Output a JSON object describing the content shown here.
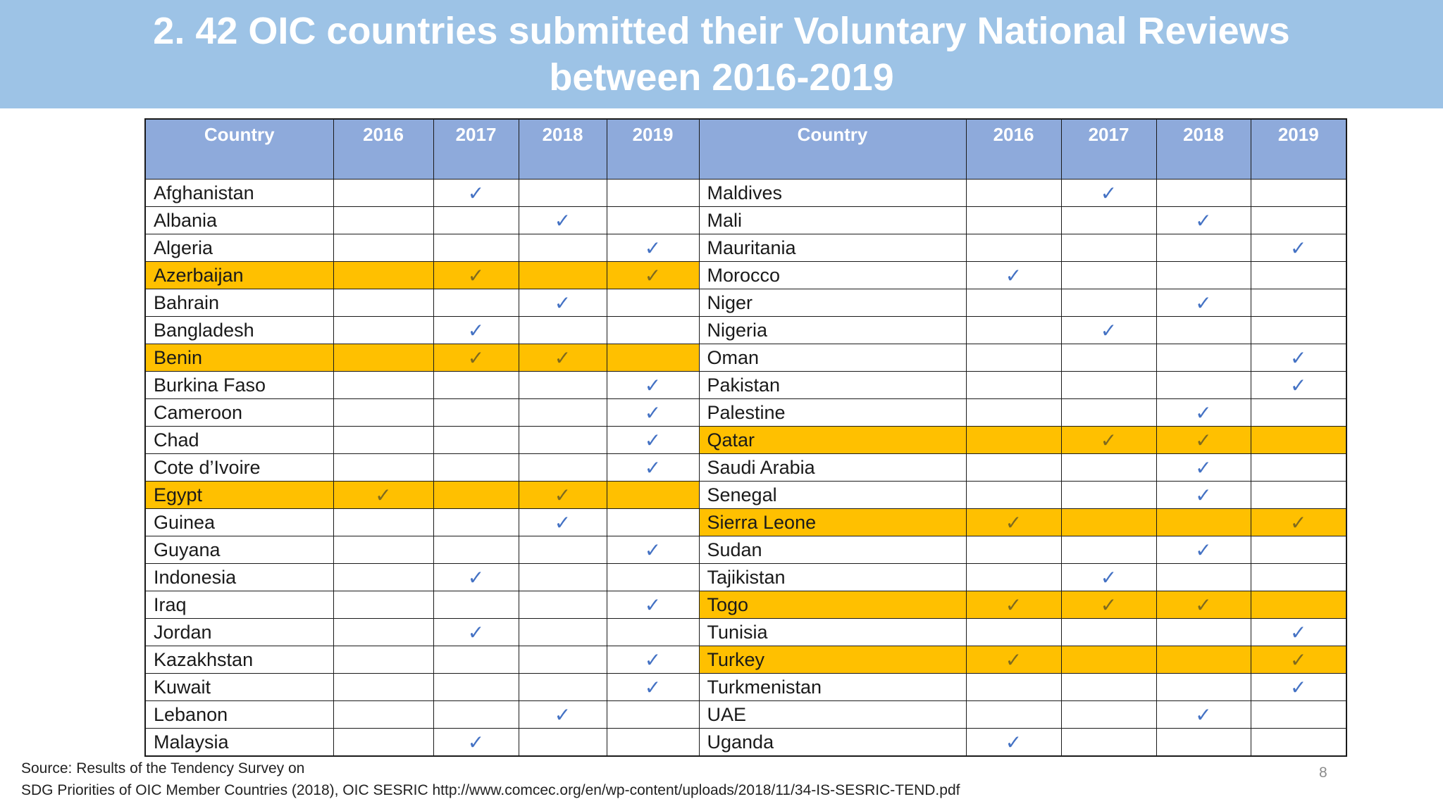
{
  "title": {
    "line1": "2. 42 OIC countries submitted their Voluntary National Reviews",
    "line2": "between 2016-2019"
  },
  "table": {
    "headers": {
      "left": [
        "Country",
        "2016",
        "2017",
        "2018",
        "2019"
      ],
      "right": [
        "Country",
        "2016",
        "2017",
        "2018",
        "2019"
      ]
    },
    "check_symbol": "✓",
    "highlight_color": "#ffc000",
    "check_color": "#4472c4",
    "rows": [
      {
        "left": {
          "country": "Afghanistan",
          "marks": [
            0,
            1,
            0,
            0
          ],
          "highlight": false
        },
        "right": {
          "country": "Maldives",
          "marks": [
            0,
            1,
            0,
            0
          ],
          "highlight": false
        }
      },
      {
        "left": {
          "country": "Albania",
          "marks": [
            0,
            0,
            1,
            0
          ],
          "highlight": false
        },
        "right": {
          "country": "Mali",
          "marks": [
            0,
            0,
            1,
            0
          ],
          "highlight": false
        }
      },
      {
        "left": {
          "country": "Algeria",
          "marks": [
            0,
            0,
            0,
            1
          ],
          "highlight": false
        },
        "right": {
          "country": "Mauritania",
          "marks": [
            0,
            0,
            0,
            1
          ],
          "highlight": false
        }
      },
      {
        "left": {
          "country": "Azerbaijan",
          "marks": [
            0,
            1,
            0,
            1
          ],
          "highlight": true
        },
        "right": {
          "country": "Morocco",
          "marks": [
            1,
            0,
            0,
            0
          ],
          "highlight": false
        }
      },
      {
        "left": {
          "country": "Bahrain",
          "marks": [
            0,
            0,
            1,
            0
          ],
          "highlight": false
        },
        "right": {
          "country": "Niger",
          "marks": [
            0,
            0,
            1,
            0
          ],
          "highlight": false
        }
      },
      {
        "left": {
          "country": "Bangladesh",
          "marks": [
            0,
            1,
            0,
            0
          ],
          "highlight": false
        },
        "right": {
          "country": "Nigeria",
          "marks": [
            0,
            1,
            0,
            0
          ],
          "highlight": false
        }
      },
      {
        "left": {
          "country": "Benin",
          "marks": [
            0,
            1,
            1,
            0
          ],
          "highlight": true
        },
        "right": {
          "country": "Oman",
          "marks": [
            0,
            0,
            0,
            1
          ],
          "highlight": false
        }
      },
      {
        "left": {
          "country": "Burkina Faso",
          "marks": [
            0,
            0,
            0,
            1
          ],
          "highlight": false
        },
        "right": {
          "country": "Pakistan",
          "marks": [
            0,
            0,
            0,
            1
          ],
          "highlight": false
        }
      },
      {
        "left": {
          "country": "Cameroon",
          "marks": [
            0,
            0,
            0,
            1
          ],
          "highlight": false
        },
        "right": {
          "country": "Palestine",
          "marks": [
            0,
            0,
            1,
            0
          ],
          "highlight": false
        }
      },
      {
        "left": {
          "country": "Chad",
          "marks": [
            0,
            0,
            0,
            1
          ],
          "highlight": false
        },
        "right": {
          "country": "Qatar",
          "marks": [
            0,
            1,
            1,
            0
          ],
          "highlight": true
        }
      },
      {
        "left": {
          "country": "Cote d’Ivoire",
          "marks": [
            0,
            0,
            0,
            1
          ],
          "highlight": false
        },
        "right": {
          "country": "Saudi Arabia",
          "marks": [
            0,
            0,
            1,
            0
          ],
          "highlight": false
        }
      },
      {
        "left": {
          "country": "Egypt",
          "marks": [
            1,
            0,
            1,
            0
          ],
          "highlight": true
        },
        "right": {
          "country": "Senegal",
          "marks": [
            0,
            0,
            1,
            0
          ],
          "highlight": false
        }
      },
      {
        "left": {
          "country": "Guinea",
          "marks": [
            0,
            0,
            1,
            0
          ],
          "highlight": false
        },
        "right": {
          "country": "Sierra Leone",
          "marks": [
            1,
            0,
            0,
            1
          ],
          "highlight": true
        }
      },
      {
        "left": {
          "country": "Guyana",
          "marks": [
            0,
            0,
            0,
            1
          ],
          "highlight": false
        },
        "right": {
          "country": "Sudan",
          "marks": [
            0,
            0,
            1,
            0
          ],
          "highlight": false
        }
      },
      {
        "left": {
          "country": "Indonesia",
          "marks": [
            0,
            1,
            0,
            0
          ],
          "highlight": false
        },
        "right": {
          "country": "Tajikistan",
          "marks": [
            0,
            1,
            0,
            0
          ],
          "highlight": false
        }
      },
      {
        "left": {
          "country": "Iraq",
          "marks": [
            0,
            0,
            0,
            1
          ],
          "highlight": false
        },
        "right": {
          "country": "Togo",
          "marks": [
            1,
            1,
            1,
            0
          ],
          "highlight": true
        }
      },
      {
        "left": {
          "country": "Jordan",
          "marks": [
            0,
            1,
            0,
            0
          ],
          "highlight": false
        },
        "right": {
          "country": "Tunisia",
          "marks": [
            0,
            0,
            0,
            1
          ],
          "highlight": false
        }
      },
      {
        "left": {
          "country": "Kazakhstan",
          "marks": [
            0,
            0,
            0,
            1
          ],
          "highlight": false
        },
        "right": {
          "country": "Turkey",
          "marks": [
            1,
            0,
            0,
            1
          ],
          "highlight": true
        }
      },
      {
        "left": {
          "country": "Kuwait",
          "marks": [
            0,
            0,
            0,
            1
          ],
          "highlight": false
        },
        "right": {
          "country": "Turkmenistan",
          "marks": [
            0,
            0,
            0,
            1
          ],
          "highlight": false
        }
      },
      {
        "left": {
          "country": "Lebanon",
          "marks": [
            0,
            0,
            1,
            0
          ],
          "highlight": false
        },
        "right": {
          "country": "UAE",
          "marks": [
            0,
            0,
            1,
            0
          ],
          "highlight": false
        }
      },
      {
        "left": {
          "country": "Malaysia",
          "marks": [
            0,
            1,
            0,
            0
          ],
          "highlight": false
        },
        "right": {
          "country": "Uganda",
          "marks": [
            1,
            0,
            0,
            0
          ],
          "highlight": false
        }
      }
    ]
  },
  "source": {
    "line1": "Source: Results of the Tendency Survey on",
    "line2": "SDG Priorities of OIC Member Countries (2018), OIC SESRIC http://www.comcec.org/en/wp-content/uploads/2018/11/34-IS-SESRIC-TEND.pdf"
  },
  "page_number": "8"
}
